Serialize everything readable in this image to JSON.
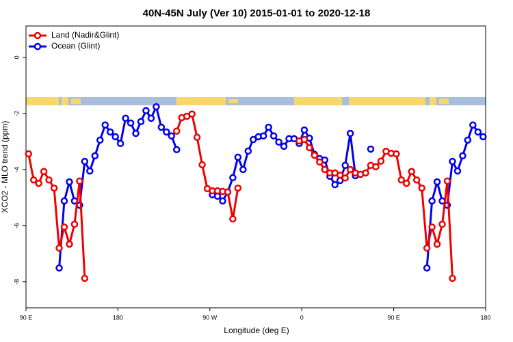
{
  "chart_data": {
    "type": "line",
    "title": "40N-45N July (Ver 10)   2015-01-01 to 2020-12-18",
    "x_label": "Longitude (deg E)",
    "y_label": "XCO2 - MLO trend (ppm)",
    "x": [
      92.5,
      97.5,
      102.5,
      107.5,
      112.5,
      117.5,
      122.5,
      127.5,
      132.5,
      137.5,
      142.5,
      147.5,
      152.5,
      157.5,
      162.5,
      167.5,
      172.5,
      177.5,
      182.5,
      187.5,
      192.5,
      197.5,
      202.5,
      207.5,
      212.5,
      217.5,
      222.5,
      227.5,
      232.5,
      237.5,
      242.5,
      247.5,
      252.5,
      257.5,
      262.5,
      267.5,
      272.5,
      277.5,
      282.5,
      287.5,
      292.5,
      297.5,
      302.5,
      307.5,
      312.5,
      317.5,
      322.5,
      327.5,
      332.5,
      337.5,
      342.5,
      347.5,
      352.5,
      357.5,
      362.5,
      367.5,
      372.5,
      377.5,
      382.5,
      387.5,
      392.5,
      397.5,
      402.5,
      407.5,
      412.5,
      417.5,
      422.5,
      427.5,
      432.5,
      437.5,
      442.5,
      447.5,
      452.5,
      457.5,
      462.5,
      467.5,
      472.5,
      477.5,
      482.5,
      487.5,
      492.5,
      497.5,
      502.5,
      507.5,
      512.5,
      517.5,
      522.5,
      527.5,
      532.5,
      537.5
    ],
    "series": [
      {
        "name": "Ocean (Glint)",
        "color": "#0000ee",
        "values": [
          null,
          null,
          null,
          null,
          null,
          null,
          -7.51,
          -5.12,
          -4.44,
          -5.12,
          -5.27,
          -3.71,
          -4.05,
          -3.51,
          -2.95,
          -2.41,
          -2.66,
          -2.83,
          -3.07,
          -2.17,
          -2.34,
          -2.71,
          -2.29,
          -1.9,
          -2.17,
          -1.76,
          -2.49,
          -2.66,
          -2.8,
          -3.29,
          null,
          null,
          null,
          null,
          null,
          null,
          -4.9,
          -4.95,
          -5.12,
          -4.8,
          -4.29,
          -3.56,
          -4.0,
          -3.34,
          -2.93,
          -2.83,
          -2.8,
          -2.49,
          -2.8,
          -3.02,
          -3.17,
          -2.9,
          -2.9,
          -3.07,
          -2.59,
          -2.88,
          -3.46,
          -3.61,
          -3.66,
          -4.24,
          -4.54,
          -4.39,
          -3.85,
          -2.71,
          -4.22,
          null,
          null,
          -3.27,
          null,
          null,
          null,
          null,
          null,
          null,
          null,
          null,
          null,
          null,
          -7.51,
          -5.12,
          -4.44,
          -5.12,
          -5.27,
          -3.71,
          -4.05,
          -3.51,
          -2.95,
          -2.41,
          -2.66,
          -2.83
        ]
      },
      {
        "name": "Land (Nadir&Glint)",
        "color": "#ee0000",
        "values": [
          -3.44,
          -4.37,
          -4.49,
          -4.07,
          -4.37,
          -4.66,
          -6.8,
          -6.05,
          -6.66,
          -5.95,
          -4.41,
          -7.88,
          null,
          null,
          null,
          null,
          null,
          null,
          null,
          null,
          null,
          null,
          null,
          null,
          null,
          null,
          null,
          null,
          null,
          -2.63,
          -2.15,
          -2.1,
          -2.02,
          -2.85,
          -3.83,
          -4.68,
          -4.76,
          -4.76,
          -4.78,
          -4.8,
          -5.76,
          -4.66,
          null,
          null,
          null,
          null,
          null,
          null,
          null,
          null,
          null,
          null,
          null,
          -2.98,
          -2.93,
          -3.22,
          -3.49,
          -3.73,
          -4.0,
          -4.12,
          -4.12,
          -4.2,
          -4.3,
          -4.0,
          -4.12,
          -4.17,
          -4.12,
          -3.85,
          -3.9,
          -3.7,
          -3.35,
          -3.42,
          -3.44,
          -4.37,
          -4.49,
          -4.07,
          -4.37,
          -4.66,
          -6.8,
          -6.05,
          -6.66,
          -5.95,
          -4.41,
          -7.88,
          null,
          null,
          null,
          null,
          null,
          null
        ]
      }
    ],
    "legend_order": [
      1,
      0
    ],
    "legend": "topleft",
    "xlim": [
      90,
      540
    ],
    "xticks": [
      {
        "value": 90,
        "label": "90 E"
      },
      {
        "value": 180,
        "label": "180"
      },
      {
        "value": 270,
        "label": "90 W"
      },
      {
        "value": 360,
        "label": "0"
      },
      {
        "value": 450,
        "label": "90 E"
      },
      {
        "value": 540,
        "label": "180"
      }
    ],
    "ylim": [
      -8.93,
      1.12
    ],
    "yticks": [
      0,
      -2,
      -4,
      -6,
      -8
    ]
  }
}
